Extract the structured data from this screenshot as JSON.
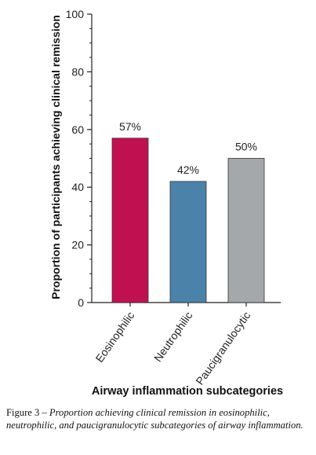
{
  "chart_data": {
    "type": "bar",
    "categories": [
      "Eosinophilic",
      "Neutrophilic",
      "Paucigranulocytic"
    ],
    "values": [
      57,
      42,
      50
    ],
    "data_labels": [
      "57%",
      "42%",
      "50%"
    ],
    "colors": [
      "#c1104f",
      "#4a82aa",
      "#a5a8ab"
    ],
    "ylabel": "Proportion of participants achieving clinical remission",
    "xlabel": "Airway inflammation subcategories",
    "ylim": [
      0,
      100
    ],
    "yticks": [
      0,
      20,
      40,
      60,
      80,
      100
    ],
    "grid": false
  },
  "caption": {
    "prefix": "Figure 3 – ",
    "text": "Proportion achieving clinical remission in eosinophilic, neutrophilic, and paucigranulocytic subcategories of airway inflammation."
  }
}
